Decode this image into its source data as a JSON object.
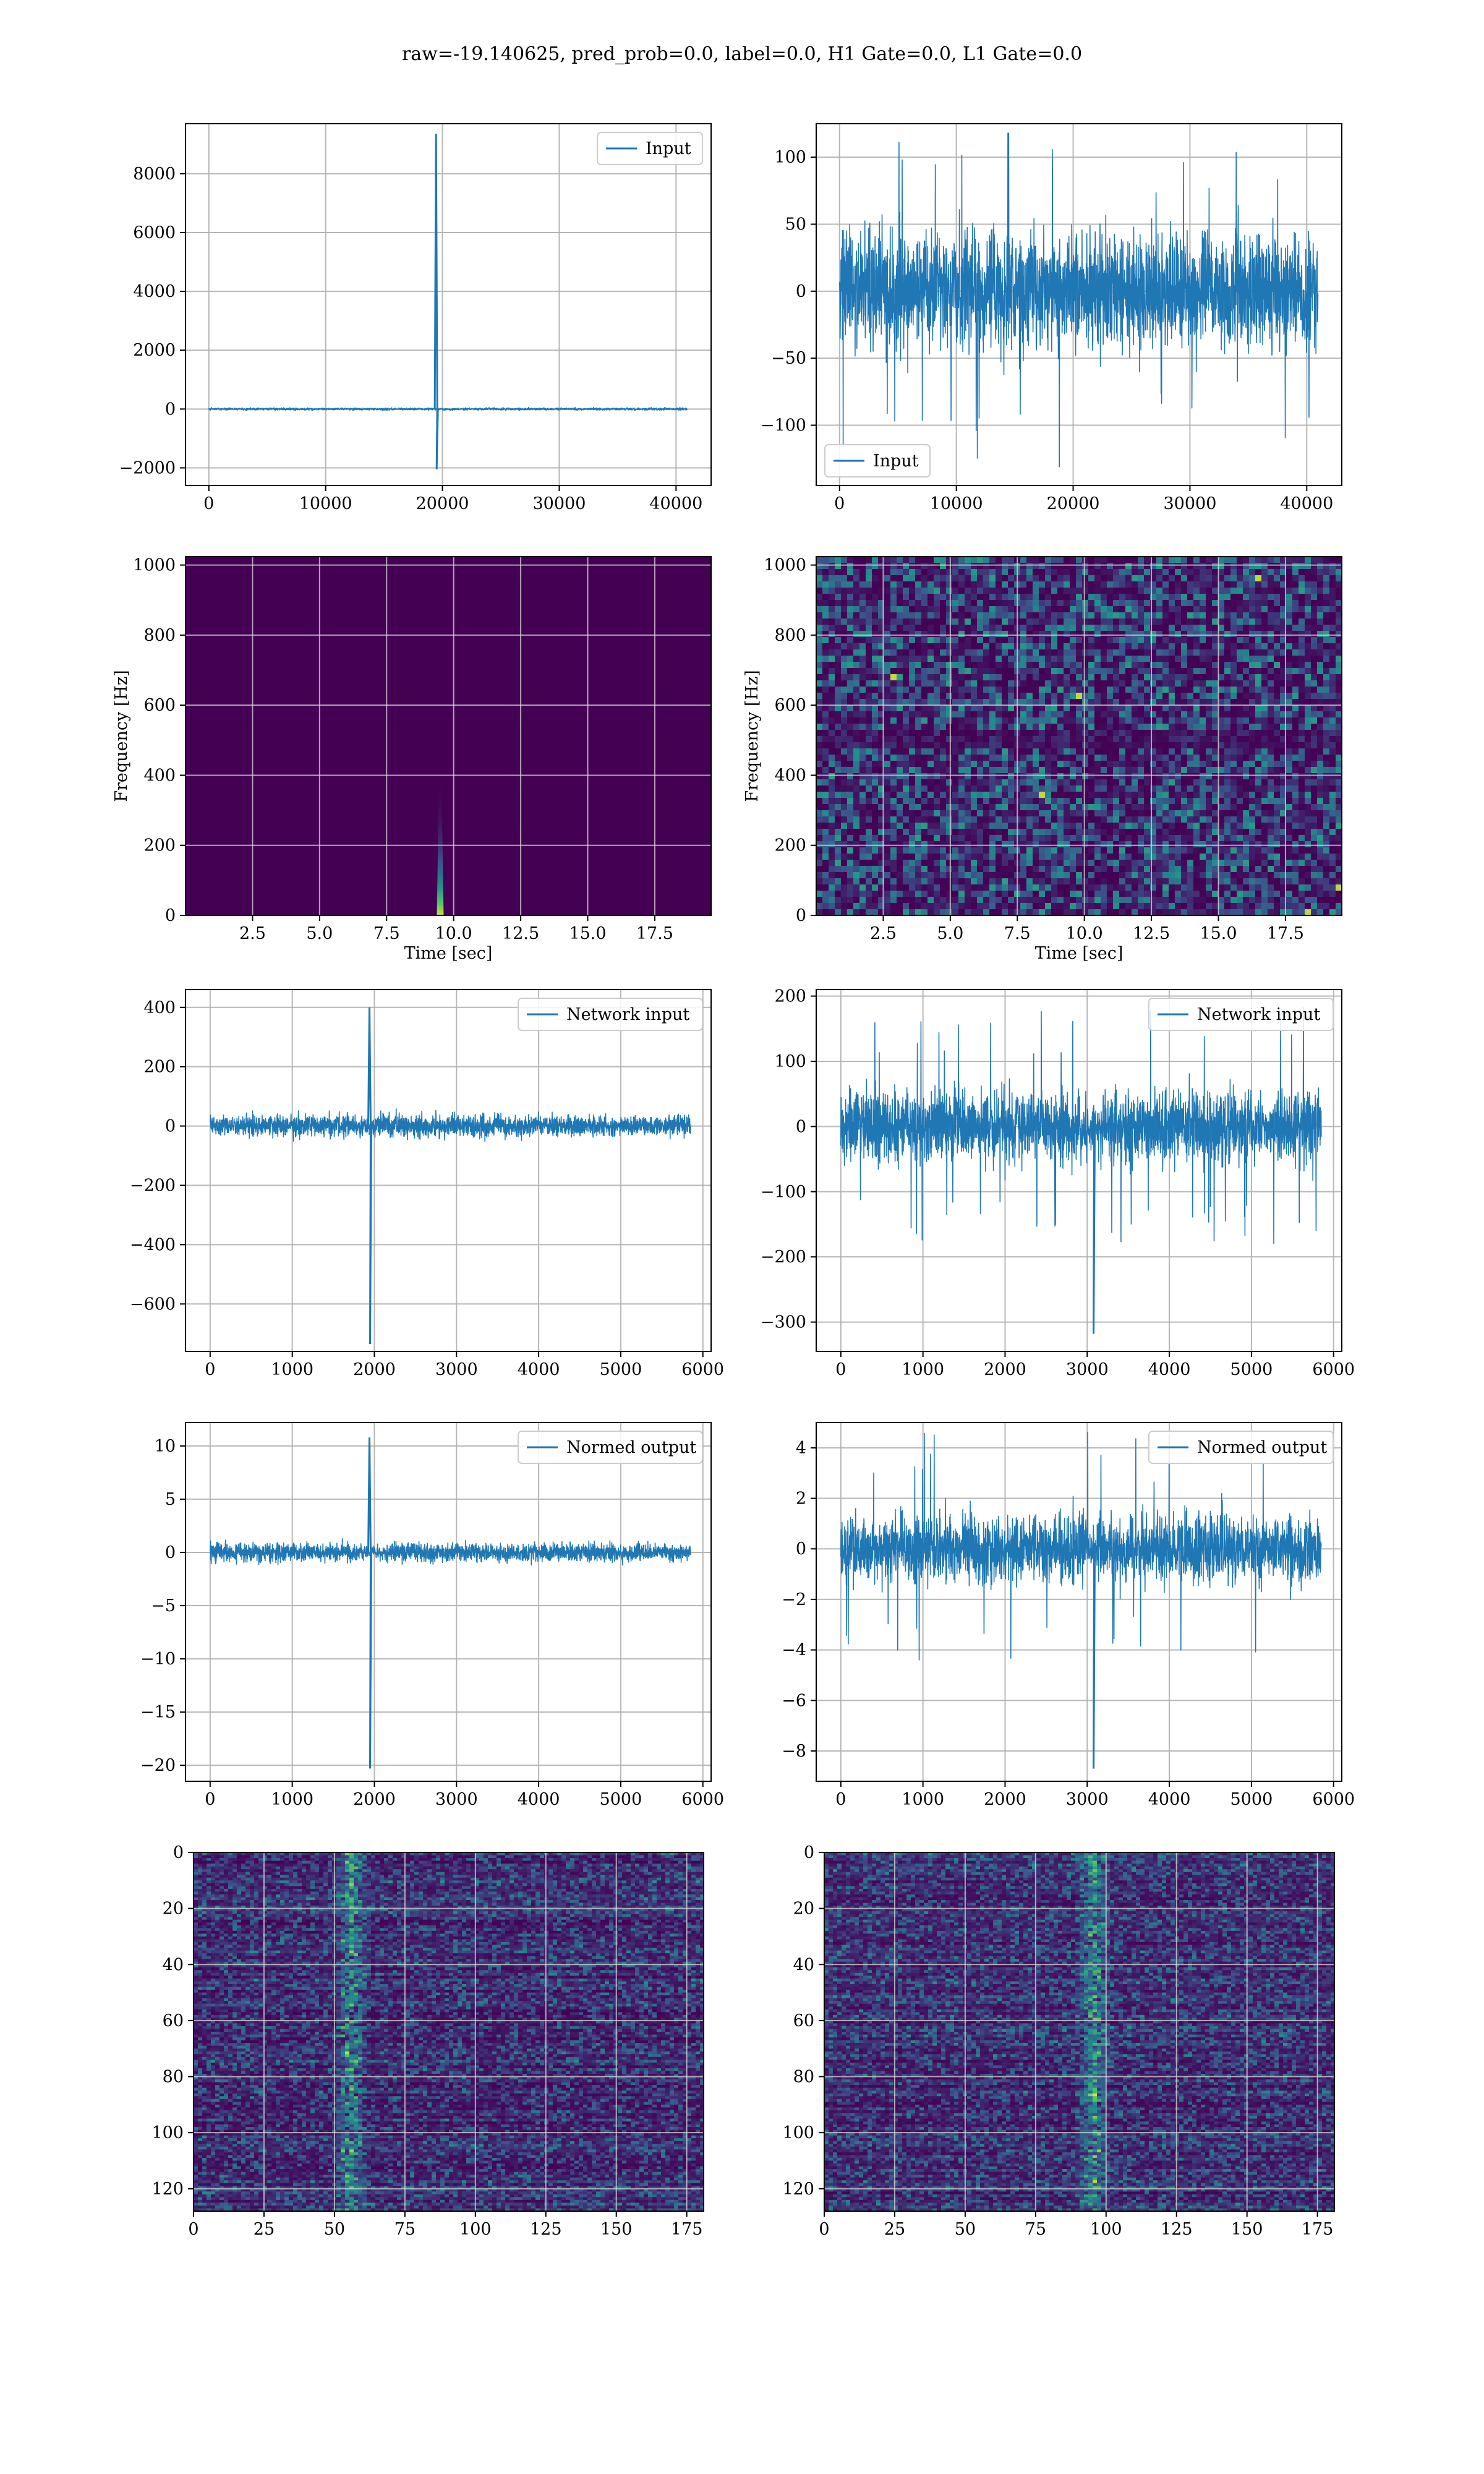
{
  "figure_title": "raw=-19.140625, pred_prob=0.0, label=0.0, H1 Gate=0.0, L1 Gate=0.0",
  "colors": {
    "line": "#1f77b4",
    "grid": "#b0b0b0",
    "viridis_low": "#440154",
    "viridis_mid": "#21918c",
    "viridis_high": "#fde725"
  },
  "chart_data": [
    {
      "id": "p1",
      "type": "line",
      "legend": "Input",
      "legend_loc": "upper right",
      "xlim": [
        -2000,
        43000
      ],
      "ylim": [
        -2600,
        9700
      ],
      "xticks": [
        0,
        10000,
        20000,
        30000,
        40000
      ],
      "yticks": [
        -2000,
        0,
        2000,
        4000,
        6000,
        8000
      ],
      "ytick_labels": [
        "−2000",
        "0",
        "2000",
        "4000",
        "6000",
        "8000"
      ],
      "grid": true,
      "signal": {
        "x_start": 0,
        "x_end": 40960,
        "noise_amplitude": 60,
        "spike_x": 19450,
        "spike_max": 9350,
        "spike_min": -2050
      }
    },
    {
      "id": "p2",
      "type": "line",
      "legend": "Input",
      "legend_loc": "lower left",
      "xlim": [
        -2000,
        43000
      ],
      "ylim": [
        -145,
        125
      ],
      "xticks": [
        0,
        10000,
        20000,
        30000,
        40000
      ],
      "yticks": [
        -100,
        -50,
        0,
        50,
        100
      ],
      "ytick_labels": [
        "−100",
        "−50",
        "0",
        "50",
        "100"
      ],
      "grid": true,
      "signal": {
        "x_start": 0,
        "x_end": 40960,
        "noise_amplitude": 65,
        "max": 118,
        "min": -135
      }
    },
    {
      "id": "p3",
      "type": "heatmap",
      "xlabel": "Time [sec]",
      "ylabel": "Frequency [Hz]",
      "xlim": [
        0,
        19.6
      ],
      "ylim": [
        0,
        1024
      ],
      "xticks": [
        2.5,
        5.0,
        7.5,
        10.0,
        12.5,
        15.0,
        17.5
      ],
      "xtick_labels": [
        "2.5",
        "5.0",
        "7.5",
        "10.0",
        "12.5",
        "15.0",
        "17.5"
      ],
      "yticks": [
        0,
        200,
        400,
        600,
        800,
        1000
      ],
      "grid": true,
      "heatmap": {
        "style": "chirp",
        "event_time": 9.5,
        "event_fmax": 450
      }
    },
    {
      "id": "p4",
      "type": "heatmap",
      "xlabel": "Time [sec]",
      "ylabel": "Frequency [Hz]",
      "xlim": [
        0,
        19.6
      ],
      "ylim": [
        0,
        1024
      ],
      "xticks": [
        2.5,
        5.0,
        7.5,
        10.0,
        12.5,
        15.0,
        17.5
      ],
      "xtick_labels": [
        "2.5",
        "5.0",
        "7.5",
        "10.0",
        "12.5",
        "15.0",
        "17.5"
      ],
      "yticks": [
        0,
        200,
        400,
        600,
        800,
        1000
      ],
      "grid": true,
      "heatmap": {
        "style": "noise",
        "dark_band_freq": 505
      }
    },
    {
      "id": "p5",
      "type": "line",
      "legend": "Network input",
      "legend_loc": "upper right",
      "xlim": [
        -300,
        6100
      ],
      "ylim": [
        -760,
        460
      ],
      "xticks": [
        0,
        1000,
        2000,
        3000,
        4000,
        5000,
        6000
      ],
      "yticks": [
        -600,
        -400,
        -200,
        0,
        200,
        400
      ],
      "ytick_labels": [
        "−600",
        "−400",
        "−200",
        "0",
        "200",
        "400"
      ],
      "grid": true,
      "signal": {
        "x_start": 0,
        "x_end": 5850,
        "noise_amplitude": 55,
        "spike_x": 1940,
        "spike_max": 400,
        "spike_min": -735
      }
    },
    {
      "id": "p6",
      "type": "line",
      "legend": "Network input",
      "legend_loc": "upper right",
      "xlim": [
        -300,
        6100
      ],
      "ylim": [
        -345,
        210
      ],
      "xticks": [
        0,
        1000,
        2000,
        3000,
        4000,
        5000,
        6000
      ],
      "yticks": [
        -300,
        -200,
        -100,
        0,
        100,
        200
      ],
      "ytick_labels": [
        "−300",
        "−200",
        "−100",
        "0",
        "100",
        "200"
      ],
      "grid": true,
      "signal": {
        "x_start": 0,
        "x_end": 5850,
        "noise_amplitude": 80,
        "spike_x": 3070,
        "spike_min": -318,
        "max": 185,
        "min": -185
      }
    },
    {
      "id": "p7",
      "type": "line",
      "legend": "Normed output",
      "legend_loc": "upper right",
      "xlim": [
        -300,
        6100
      ],
      "ylim": [
        -21.5,
        12.2
      ],
      "xticks": [
        0,
        1000,
        2000,
        3000,
        4000,
        5000,
        6000
      ],
      "yticks": [
        -20,
        -15,
        -10,
        -5,
        0,
        5,
        10
      ],
      "ytick_labels": [
        "−20",
        "−15",
        "−10",
        "−5",
        "0",
        "5",
        "10"
      ],
      "grid": true,
      "signal": {
        "x_start": 0,
        "x_end": 5850,
        "noise_amplitude": 1.3,
        "spike_x": 1940,
        "spike_max": 10.8,
        "spike_min": -20.3
      }
    },
    {
      "id": "p8",
      "type": "line",
      "legend": "Normed output",
      "legend_loc": "upper right",
      "xlim": [
        -300,
        6100
      ],
      "ylim": [
        -9.2,
        5.0
      ],
      "xticks": [
        0,
        1000,
        2000,
        3000,
        4000,
        5000,
        6000
      ],
      "yticks": [
        -8,
        -6,
        -4,
        -2,
        0,
        2,
        4
      ],
      "ytick_labels": [
        "−8",
        "−6",
        "−4",
        "−2",
        "0",
        "2",
        "4"
      ],
      "grid": true,
      "signal": {
        "x_start": 0,
        "x_end": 5850,
        "noise_amplitude": 2.0,
        "spike_x": 3070,
        "spike_min": -8.7,
        "max": 4.8,
        "min": -4.4
      }
    },
    {
      "id": "p9",
      "type": "heatmap",
      "xlim": [
        0,
        181
      ],
      "ylim": [
        128,
        0
      ],
      "xticks": [
        0,
        25,
        50,
        75,
        100,
        125,
        150,
        175
      ],
      "yticks": [
        0,
        20,
        40,
        60,
        80,
        100,
        120
      ],
      "grid": true,
      "heatmap": {
        "style": "features",
        "band_col": 55
      }
    },
    {
      "id": "p10",
      "type": "heatmap",
      "xlim": [
        0,
        181
      ],
      "ylim": [
        128,
        0
      ],
      "xticks": [
        0,
        25,
        50,
        75,
        100,
        125,
        150,
        175
      ],
      "yticks": [
        0,
        20,
        40,
        60,
        80,
        100,
        120
      ],
      "grid": true,
      "heatmap": {
        "style": "features",
        "band_col": 95
      }
    }
  ]
}
